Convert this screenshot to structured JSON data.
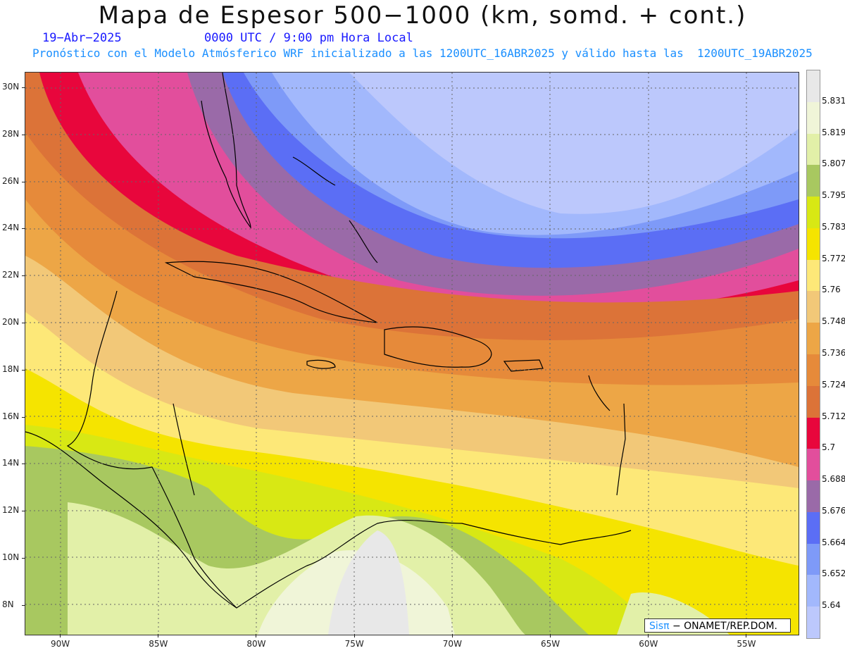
{
  "title": "Mapa de Espesor 500−1000 (km, somd. + cont.)",
  "date": "19−Abr−2025",
  "time": "0000 UTC / 9:00 pm Hora Local",
  "model_info": "Pronóstico con el Modelo Atmósferico WRF inicializado a las 1200UTC_16ABR2025 y válido hasta las  1200UTC_19ABR2025",
  "credit": {
    "brand": "Sisπ",
    "org": "− ONAMET/REP.DOM."
  },
  "lat_labels": [
    "30N",
    "28N",
    "26N",
    "24N",
    "22N",
    "20N",
    "18N",
    "16N",
    "14N",
    "12N",
    "10N",
    "8N"
  ],
  "lon_labels": [
    "90W",
    "85W",
    "80W",
    "75W",
    "70W",
    "65W",
    "60W",
    "55W"
  ],
  "colorbar": {
    "labels": [
      "5.831",
      "5.819",
      "5.807",
      "5.795",
      "5.783",
      "5.772",
      "5.76",
      "5.748",
      "5.736",
      "5.724",
      "5.712",
      "5.7",
      "5.688",
      "5.676",
      "5.664",
      "5.652",
      "5.64"
    ],
    "colors": [
      "#e8e8e8",
      "#f0f5d8",
      "#e2f0a8",
      "#a8c860",
      "#d8e814",
      "#f5e400",
      "#fde878",
      "#f2c878",
      "#eda646",
      "#e68a3a",
      "#dc7338",
      "#e8063c",
      "#e24e9c",
      "#9a6aa8",
      "#5b6ef5",
      "#7e9af8",
      "#a2b8fc",
      "#bcc8fc"
    ]
  }
}
